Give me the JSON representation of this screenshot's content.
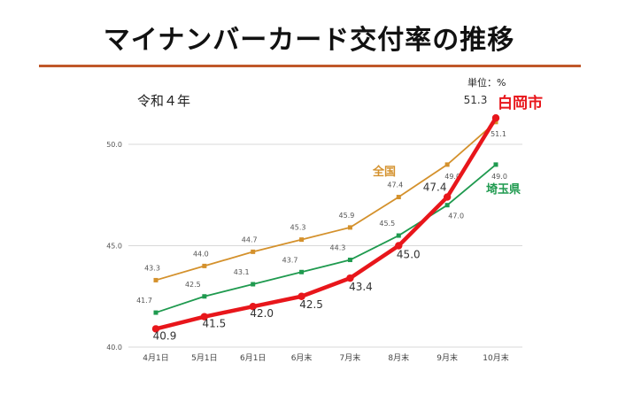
{
  "header": {
    "title": "マイナンバーカード交付率の推移",
    "subtitle": "令和４年",
    "unit": "単位：%"
  },
  "chart_data": {
    "type": "line",
    "title": "マイナンバーカード交付率の推移",
    "subtitle": "令和４年",
    "unit": "単位：%",
    "categories": [
      "4月1日",
      "5月1日",
      "6月1日",
      "6月末",
      "7月末",
      "8月末",
      "9月末",
      "10月末"
    ],
    "ylim": [
      40.0,
      50.0
    ],
    "yticks": [
      "40.0",
      "45.0",
      "50.0"
    ],
    "grid": true,
    "series": [
      {
        "name": "全国",
        "color": "#d4912c",
        "values": [
          43.3,
          44.0,
          44.7,
          45.3,
          45.9,
          47.4,
          49.0,
          51.1
        ],
        "labels": [
          "43.3",
          "44.0",
          "44.7",
          "45.3",
          "45.9",
          "47.4",
          "49.0",
          "51.1"
        ]
      },
      {
        "name": "埼玉県",
        "color": "#1f9a4f",
        "values": [
          41.7,
          42.5,
          43.1,
          43.7,
          44.3,
          45.5,
          47.0,
          49.0
        ],
        "labels": [
          "41.7",
          "42.5",
          "43.1",
          "43.7",
          "44.3",
          "45.5",
          "47.0",
          "49.0"
        ]
      },
      {
        "name": "白岡市",
        "color": "#e8161b",
        "values": [
          40.9,
          41.5,
          42.0,
          42.5,
          43.4,
          45.0,
          47.4,
          51.3
        ],
        "labels": [
          "40.9",
          "41.5",
          "42.0",
          "42.5",
          "43.4",
          "45.0",
          "47.4",
          "51.3"
        ]
      }
    ]
  }
}
